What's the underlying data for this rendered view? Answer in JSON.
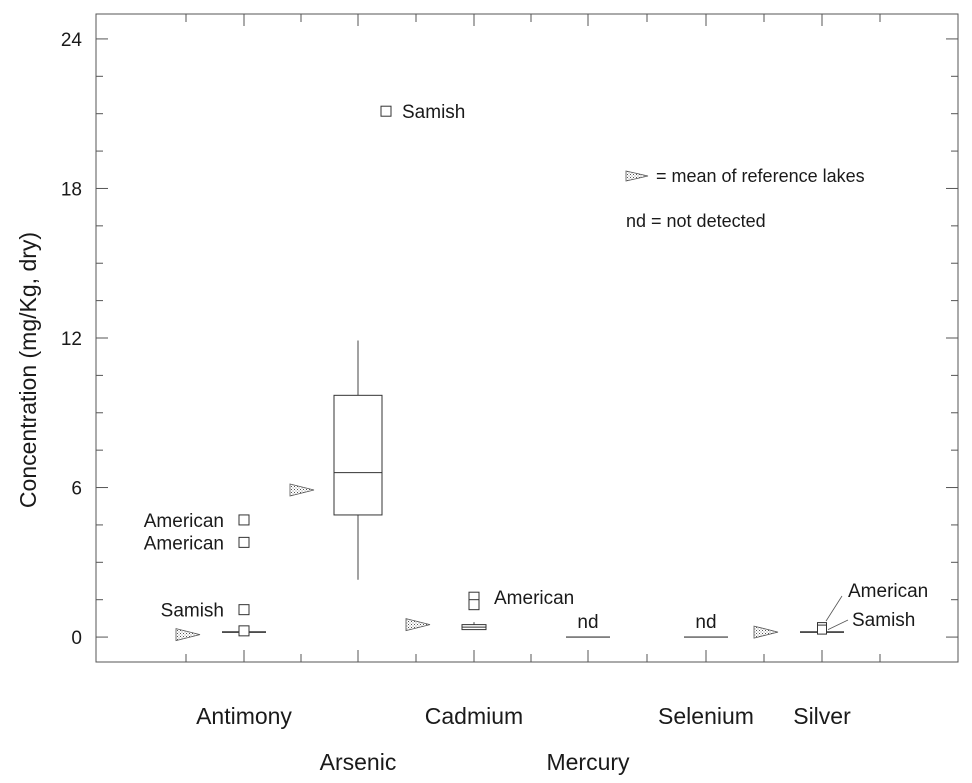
{
  "chart_data": {
    "type": "box",
    "title": "",
    "xlabel": "",
    "ylabel": "Concentration (mg/Kg, dry)",
    "ylim": [
      -1,
      25
    ],
    "yticks": [
      0,
      6,
      12,
      18,
      24
    ],
    "grid": false,
    "categories": [
      "Antimony",
      "Arsenic",
      "Cadmium",
      "Mercury",
      "Selenium",
      "Silver"
    ],
    "boxes": [
      {
        "category": "Antimony",
        "whisker_low": 0.2,
        "q1": 0.2,
        "median": 0.2,
        "q3": 0.2,
        "whisker_high": 0.2
      },
      {
        "category": "Arsenic",
        "whisker_low": 2.3,
        "q1": 4.9,
        "median": 6.6,
        "q3": 9.7,
        "whisker_high": 11.9
      },
      {
        "category": "Cadmium",
        "whisker_low": 0.3,
        "q1": 0.3,
        "median": 0.4,
        "q3": 0.5,
        "whisker_high": 0.6
      },
      {
        "category": "Silver",
        "whisker_low": 0.2,
        "q1": 0.2,
        "median": 0.2,
        "q3": 0.2,
        "whisker_high": 0.2
      }
    ],
    "outliers": [
      {
        "category": "Antimony",
        "value": 4.7,
        "label": "American"
      },
      {
        "category": "Antimony",
        "value": 3.8,
        "label": "American"
      },
      {
        "category": "Antimony",
        "value": 1.1,
        "label": "Samish"
      },
      {
        "category": "Antimony",
        "value": 0.25,
        "label": ""
      },
      {
        "category": "Arsenic",
        "value": 21.1,
        "label": "Samish"
      },
      {
        "category": "Cadmium",
        "value": 1.6,
        "label": "American"
      },
      {
        "category": "Cadmium",
        "value": 1.3,
        "label": ""
      },
      {
        "category": "Silver",
        "value": 0.4,
        "label": "American"
      },
      {
        "category": "Silver",
        "value": 0.3,
        "label": "Samish"
      }
    ],
    "reference_means": [
      {
        "category": "Antimony",
        "value": 0.1
      },
      {
        "category": "Arsenic",
        "value": 5.9
      },
      {
        "category": "Cadmium",
        "value": 0.5
      },
      {
        "category": "Silver",
        "value": 0.2
      }
    ],
    "not_detected": [
      {
        "category": "Mercury",
        "label": "nd"
      },
      {
        "category": "Selenium",
        "label": "nd"
      }
    ],
    "legend": {
      "placement": "top-right",
      "triangle_text": "= mean of reference lakes",
      "nd_text": "nd = not detected"
    }
  }
}
